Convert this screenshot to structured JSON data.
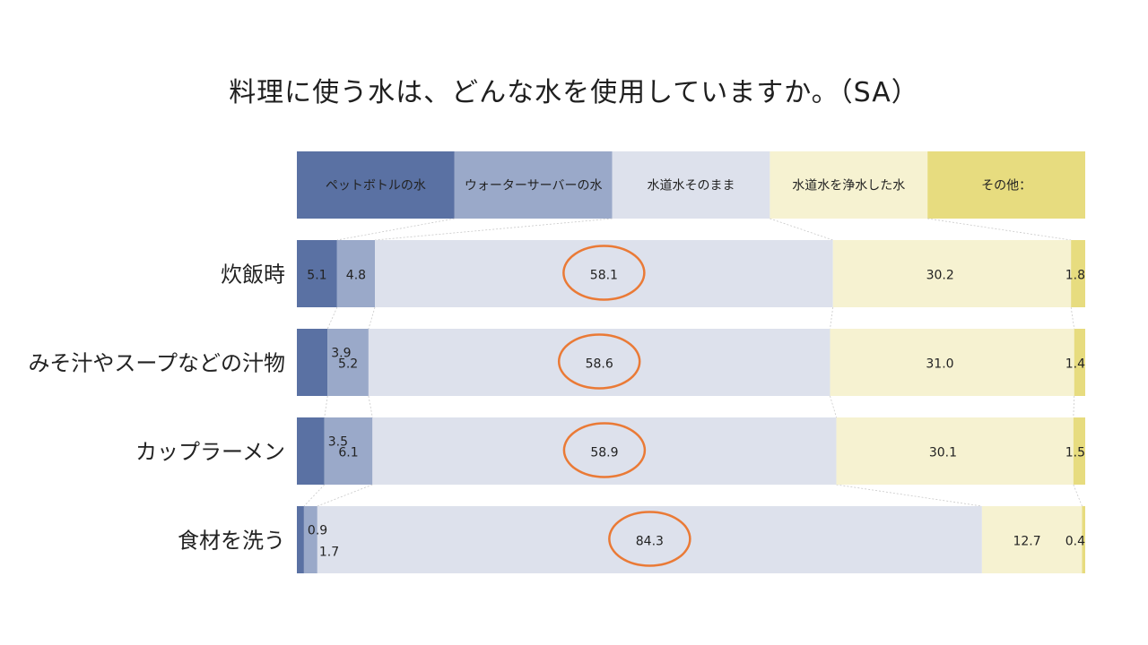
{
  "chart_data": {
    "type": "bar",
    "stacked": true,
    "orientation": "horizontal",
    "normalized": true,
    "title": "料理に使う水は、どんな水を使用していますか。（SA）",
    "categories": [
      "炊飯時",
      "みそ汁やスープなどの汁物",
      "カップラーメン",
      "食材を洗う"
    ],
    "series": [
      {
        "name": "ペットボトルの水",
        "color": "#5a71a3",
        "values": [
          5.1,
          3.9,
          3.5,
          0.9
        ]
      },
      {
        "name": "ウォーターサーバーの水",
        "color": "#9aa9c9",
        "values": [
          4.8,
          5.2,
          6.1,
          1.7
        ]
      },
      {
        "name": "水道水そのまま",
        "color": "#dde1ec",
        "values": [
          58.1,
          58.6,
          58.9,
          84.3
        ]
      },
      {
        "name": "水道水を浄水した水",
        "color": "#f6f2d1",
        "values": [
          30.2,
          31.0,
          30.1,
          12.7
        ]
      },
      {
        "name": "その他：",
        "color": "#e7dc7f",
        "values": [
          1.8,
          1.4,
          1.5,
          0.4
        ]
      }
    ],
    "highlight_series": "水道水そのまま",
    "highlight_color": "#ea7a36",
    "legend_position": "top",
    "grid": false
  }
}
